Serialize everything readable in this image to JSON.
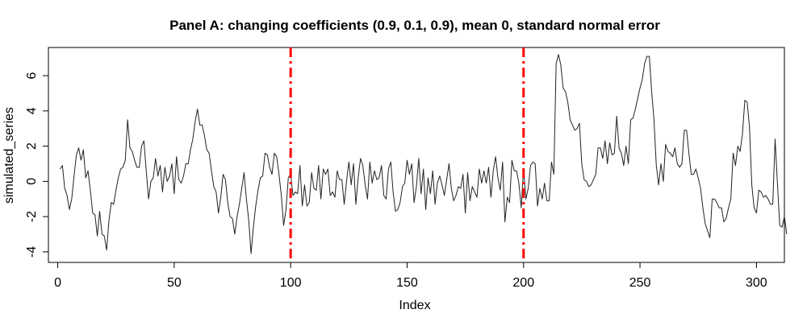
{
  "chart_data": {
    "type": "line",
    "title": "Panel A: changing coefficients (0.9, 0.1, 0.9), mean 0, standard normal error",
    "xlabel": "Index",
    "ylabel": "simulated_series",
    "xlim": [
      -4,
      312
    ],
    "ylim": [
      -4.6,
      7.6
    ],
    "xticks": [
      0,
      50,
      100,
      150,
      200,
      250,
      300
    ],
    "yticks": [
      -4,
      -2,
      0,
      2,
      4,
      6
    ],
    "grid": false,
    "reference_lines": [
      {
        "x": 100,
        "color": "#ff0000"
      },
      {
        "x": 200,
        "color": "#ff0000"
      }
    ],
    "series": [
      {
        "color": "#222222",
        "x_start": 1,
        "values": [
          0.7,
          0.9,
          -0.4,
          -0.8,
          -1.6,
          -1.0,
          0.3,
          1.5,
          1.9,
          1.2,
          1.8,
          0.2,
          0.6,
          -0.5,
          -1.8,
          -1.9,
          -3.1,
          -1.7,
          -3.0,
          -3.1,
          -3.9,
          -2.2,
          -1.2,
          -1.3,
          -0.5,
          0.2,
          0.7,
          0.8,
          1.2,
          3.5,
          1.9,
          1.7,
          1.2,
          0.8,
          0.8,
          2.0,
          2.3,
          0.6,
          -1.0,
          0.0,
          0.2,
          1.3,
          0.3,
          0.9,
          -0.6,
          0.8,
          0.0,
          0.3,
          1.0,
          -0.7,
          1.4,
          0.1,
          -0.1,
          0.3,
          1.0,
          1.0,
          1.8,
          2.4,
          3.4,
          4.1,
          3.2,
          3.2,
          2.6,
          1.8,
          1.6,
          0.6,
          -0.3,
          -0.6,
          -1.8,
          -0.9,
          0.4,
          0.1,
          -1.2,
          -2.0,
          -2.1,
          -3.0,
          -2.0,
          -1.3,
          -0.4,
          0.5,
          -1.0,
          -2.2,
          -4.1,
          -2.6,
          -1.4,
          -0.5,
          0.2,
          0.3,
          1.6,
          1.5,
          0.8,
          0.4,
          1.6,
          1.4,
          0.4,
          -0.8,
          -2.5,
          -1.6,
          0.2,
          0.4,
          -0.8,
          -0.6,
          -0.7,
          0.9,
          -1.4,
          -0.2,
          -1.4,
          -1.2,
          0.5,
          -0.4,
          -0.5,
          0.9,
          -1.0,
          0.7,
          0.4,
          0.7,
          -0.8,
          -0.6,
          -0.9,
          0.6,
          0.1,
          0.1,
          -1.3,
          0.0,
          1.1,
          -0.2,
          1.0,
          -1.3,
          0.2,
          1.3,
          0.9,
          -0.2,
          -1.0,
          1.1,
          -0.1,
          0.6,
          0.1,
          0.2,
          0.9,
          -0.8,
          -1.0,
          0.7,
          1.1,
          -0.6,
          -1.7,
          -1.6,
          -1.2,
          -0.3,
          -0.1,
          1.2,
          0.4,
          1.0,
          -1.2,
          -0.3,
          1.3,
          -0.7,
          0.7,
          -1.6,
          0.2,
          -0.7,
          0.6,
          -1.3,
          -0.1,
          0.3,
          -0.2,
          -0.8,
          0.1,
          1.0,
          -0.4,
          -1.1,
          -0.8,
          -0.3,
          -0.4,
          0.4,
          -1.8,
          0.5,
          -1.1,
          -0.3,
          -0.6,
          -0.9,
          0.7,
          -0.1,
          0.6,
          -0.1,
          0.8,
          -0.9,
          0.6,
          1.4,
          0.2,
          -0.5,
          1.1,
          -2.3,
          -0.9,
          -1.2,
          1.2,
          0.6,
          0.6,
          -0.1,
          -1.5,
          0.7,
          -1.0,
          -0.4,
          0.9,
          1.1,
          1.0,
          -1.4,
          -0.4,
          -1.0,
          -0.1,
          -1.1,
          -1.1,
          1.1,
          0.4,
          6.7,
          7.2,
          6.6,
          5.3,
          5.1,
          4.5,
          3.5,
          3.2,
          2.9,
          3.0,
          3.3,
          1.0,
          0.1,
          0.0,
          -0.3,
          -0.2,
          0.1,
          0.4,
          1.9,
          1.9,
          1.3,
          2.3,
          1.0,
          2.2,
          1.5,
          1.6,
          3.7,
          1.9,
          1.6,
          0.9,
          2.0,
          1.0,
          3.5,
          3.6,
          4.1,
          4.7,
          5.3,
          5.8,
          6.7,
          7.1,
          7.1,
          5.1,
          3.5,
          0.9,
          -0.2,
          1.0,
          0.0,
          2.1,
          1.7,
          1.6,
          1.4,
          1.9,
          1.0,
          0.8,
          1.0,
          2.9,
          2.9,
          1.6,
          0.4,
          0.4,
          0.7,
          0.2,
          -0.4,
          -1.5,
          -2.4,
          -2.8,
          -3.2,
          -1.0,
          -1.0,
          -1.2,
          -1.5,
          -1.5,
          -2.3,
          -2.1,
          -1.5,
          -1.0,
          1.6,
          0.9,
          2.0,
          1.7,
          2.7,
          4.6,
          4.5,
          3.1,
          -0.2,
          -1.5,
          -1.8,
          -0.5,
          -0.6,
          -0.9,
          -0.8,
          -1.0,
          -1.3,
          -1.3,
          2.4,
          -0.1,
          -2.5,
          -2.6,
          -2.0,
          -3.0
        ]
      }
    ]
  }
}
